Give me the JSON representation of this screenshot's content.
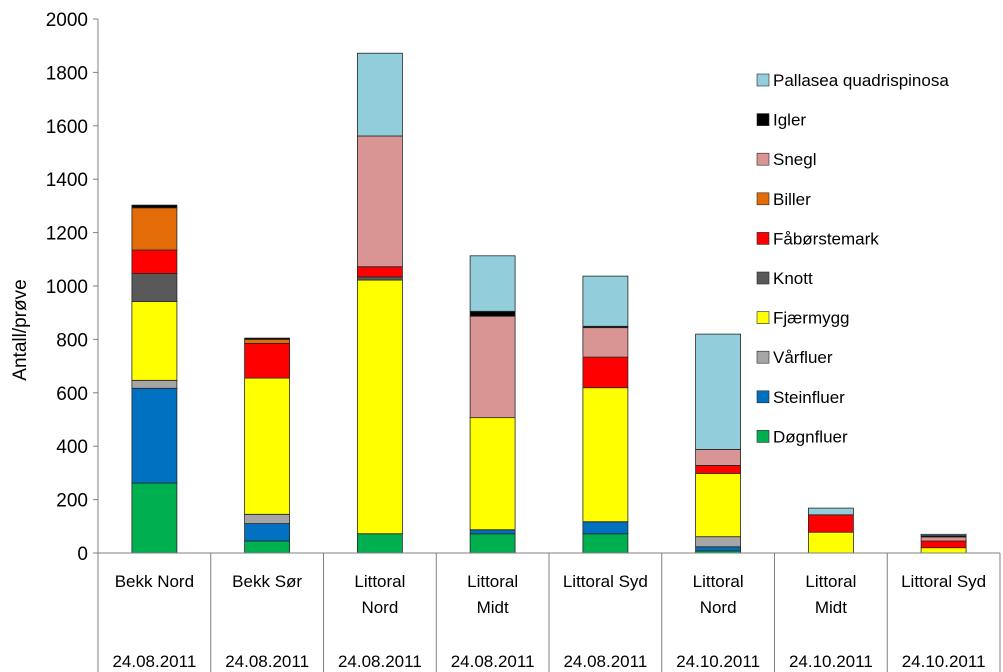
{
  "chart_data": {
    "type": "bar",
    "stacked": true,
    "ylabel": "Antall/prøve",
    "ylim": [
      0,
      2000
    ],
    "yticks": [
      0,
      200,
      400,
      600,
      800,
      1000,
      1200,
      1400,
      1600,
      1800,
      2000
    ],
    "grid": false,
    "legend_position": "right",
    "categories": [
      {
        "name_lines": [
          "Bekk Nord"
        ],
        "date": "24.08.2011"
      },
      {
        "name_lines": [
          "Bekk Sør"
        ],
        "date": "24.08.2011"
      },
      {
        "name_lines": [
          "Littoral",
          "Nord"
        ],
        "date": "24.08.2011"
      },
      {
        "name_lines": [
          "Littoral",
          "Midt"
        ],
        "date": "24.08.2011"
      },
      {
        "name_lines": [
          "Littoral Syd"
        ],
        "date": "24.08.2011"
      },
      {
        "name_lines": [
          "Littoral",
          "Nord"
        ],
        "date": "24.10.2011"
      },
      {
        "name_lines": [
          "Littoral",
          "Midt"
        ],
        "date": "24.10.2011"
      },
      {
        "name_lines": [
          "Littoral Syd"
        ],
        "date": "24.10.2011"
      }
    ],
    "series": [
      {
        "name": "Døgnfluer",
        "color": "#00b050",
        "values": [
          262,
          45,
          72,
          72,
          72,
          8,
          0,
          0
        ]
      },
      {
        "name": "Steinfluer",
        "color": "#0070c0",
        "values": [
          355,
          65,
          0,
          15,
          45,
          15,
          0,
          0
        ]
      },
      {
        "name": "Vårfluer",
        "color": "#a6a6a6",
        "values": [
          30,
          35,
          0,
          0,
          0,
          38,
          0,
          0
        ]
      },
      {
        "name": "Fjærmygg",
        "color": "#ffff00",
        "values": [
          295,
          510,
          950,
          420,
          502,
          237,
          78,
          20
        ]
      },
      {
        "name": "Knott",
        "color": "#595959",
        "values": [
          105,
          0,
          12,
          0,
          0,
          0,
          0,
          0
        ]
      },
      {
        "name": "Fåbørstemark",
        "color": "#ff0000",
        "values": [
          88,
          130,
          38,
          0,
          115,
          30,
          65,
          25
        ]
      },
      {
        "name": "Biller",
        "color": "#e36c09",
        "values": [
          158,
          15,
          0,
          0,
          0,
          0,
          0,
          0
        ]
      },
      {
        "name": "Snegl",
        "color": "#d99594",
        "values": [
          0,
          0,
          490,
          380,
          110,
          60,
          0,
          15
        ]
      },
      {
        "name": "Igler",
        "color": "#000000",
        "values": [
          10,
          5,
          0,
          18,
          5,
          0,
          0,
          5
        ]
      },
      {
        "name": "Pallasea quadrispinosa",
        "color": "#92cddc",
        "values": [
          0,
          0,
          310,
          208,
          188,
          432,
          25,
          5
        ]
      }
    ]
  }
}
